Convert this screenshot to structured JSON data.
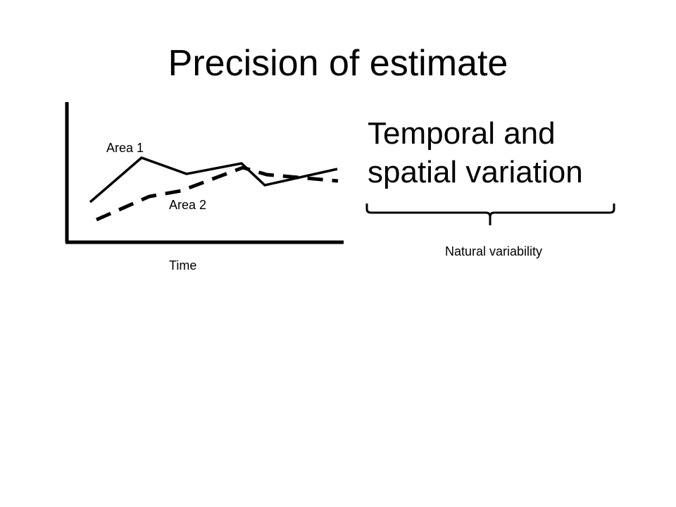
{
  "slide": {
    "title": "Precision of estimate",
    "heading_line1": "Temporal and",
    "heading_line2": "spatial variation",
    "brace_label": "Natural variability"
  },
  "chart": {
    "x_label": "Time",
    "series": [
      {
        "name": "Area 1",
        "style": "solid"
      },
      {
        "name": "Area 2",
        "style": "dashed"
      }
    ]
  }
}
